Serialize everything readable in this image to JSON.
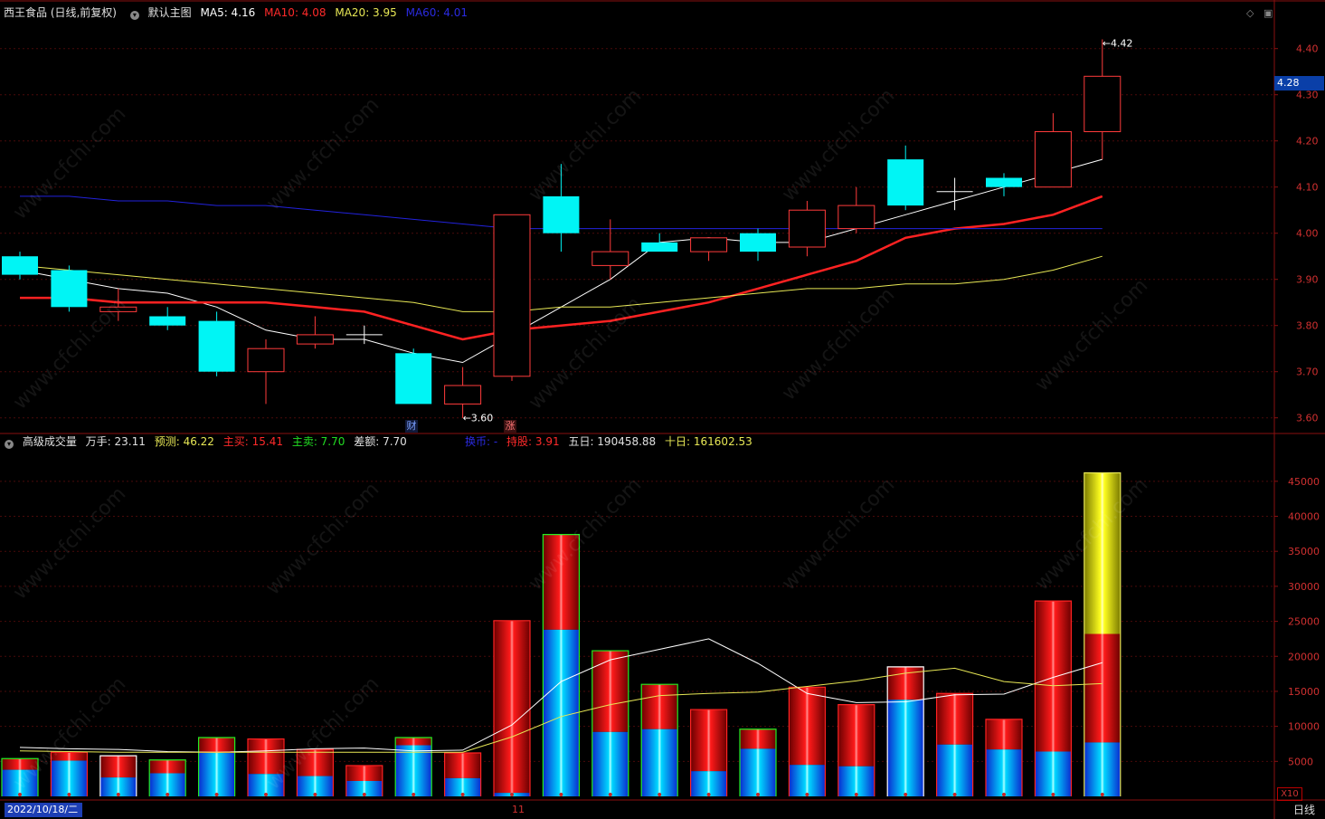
{
  "main_header": {
    "stock": "西王食品 (日线,前复权)",
    "template": "默认主图",
    "ma5": "MA5: 4.16",
    "ma10": "MA10: 4.08",
    "ma20": "MA20: 3.95",
    "ma60": "MA60: 4.01"
  },
  "vol_header": {
    "name": "高级成交量",
    "wanshou": "万手: 23.11",
    "forecast": "预测: 46.22",
    "buy": "主买: 15.41",
    "sell": "主卖: 7.70",
    "diff": "差额: 7.70",
    "huanshou": "换币: -",
    "chigu": "持股: 3.91",
    "five": "五日: 190458.88",
    "ten": "十日: 161602.53"
  },
  "current_price": "4.28",
  "date_cursor": "2022/10/18/二",
  "month_marker": "11",
  "period_tab": "日线",
  "scale_label": "X10",
  "signal_cai": "财",
  "signal_zhang": "涨",
  "watermark": "www.cfchi.com",
  "colors": {
    "up": "#ff3b3b",
    "down": "#00f5f5",
    "ma5": "#ffffff",
    "ma10": "#ff2222",
    "ma20": "#e8e855",
    "ma60": "#2222dd",
    "grid": "#4a0a0a",
    "axis_text": "#d03030"
  },
  "chart_data": [
    {
      "type": "candlestick",
      "name": "price",
      "yaxis_ticks": [
        3.6,
        3.7,
        3.8,
        3.9,
        4.0,
        4.1,
        4.2,
        4.3,
        4.4
      ],
      "ylim": [
        3.57,
        4.47
      ],
      "candles": [
        {
          "o": 3.95,
          "h": 3.96,
          "l": 3.9,
          "c": 3.91
        },
        {
          "o": 3.92,
          "h": 3.93,
          "l": 3.83,
          "c": 3.84
        },
        {
          "o": 3.83,
          "h": 3.88,
          "l": 3.81,
          "c": 3.84
        },
        {
          "o": 3.82,
          "h": 3.84,
          "l": 3.79,
          "c": 3.8
        },
        {
          "o": 3.81,
          "h": 3.83,
          "l": 3.69,
          "c": 3.7
        },
        {
          "o": 3.7,
          "h": 3.77,
          "l": 3.63,
          "c": 3.75
        },
        {
          "o": 3.76,
          "h": 3.82,
          "l": 3.75,
          "c": 3.78
        },
        {
          "o": 3.78,
          "h": 3.8,
          "l": 3.76,
          "c": 3.78
        },
        {
          "o": 3.74,
          "h": 3.75,
          "l": 3.63,
          "c": 3.63
        },
        {
          "o": 3.63,
          "h": 3.71,
          "l": 3.6,
          "c": 3.67
        },
        {
          "o": 3.69,
          "h": 4.04,
          "l": 3.68,
          "c": 4.04
        },
        {
          "o": 4.08,
          "h": 4.15,
          "l": 3.96,
          "c": 4.0
        },
        {
          "o": 3.93,
          "h": 4.03,
          "l": 3.9,
          "c": 3.96
        },
        {
          "o": 3.98,
          "h": 4.0,
          "l": 3.96,
          "c": 3.96
        },
        {
          "o": 3.96,
          "h": 3.99,
          "l": 3.94,
          "c": 3.99
        },
        {
          "o": 4.0,
          "h": 4.01,
          "l": 3.94,
          "c": 3.96
        },
        {
          "o": 3.97,
          "h": 4.07,
          "l": 3.95,
          "c": 4.05
        },
        {
          "o": 4.01,
          "h": 4.1,
          "l": 4.0,
          "c": 4.06
        },
        {
          "o": 4.16,
          "h": 4.19,
          "l": 4.05,
          "c": 4.06
        },
        {
          "o": 4.09,
          "h": 4.12,
          "l": 4.05,
          "c": 4.09
        },
        {
          "o": 4.12,
          "h": 4.13,
          "l": 4.08,
          "c": 4.1
        },
        {
          "o": 4.1,
          "h": 4.26,
          "l": 4.1,
          "c": 4.22
        },
        {
          "o": 4.22,
          "h": 4.42,
          "l": 4.16,
          "c": 4.34
        }
      ],
      "annotations": [
        {
          "label": "3.60",
          "index": 9
        },
        {
          "label": "4.42",
          "index": 22
        }
      ],
      "series": [
        {
          "name": "MA5",
          "values": [
            3.92,
            3.9,
            3.88,
            3.87,
            3.84,
            3.79,
            3.77,
            3.77,
            3.74,
            3.72,
            3.78,
            3.84,
            3.9,
            3.98,
            3.99,
            3.98,
            3.98,
            4.01,
            4.04,
            4.07,
            4.1,
            4.13,
            4.16
          ]
        },
        {
          "name": "MA10",
          "values": [
            3.86,
            3.86,
            3.85,
            3.85,
            3.85,
            3.85,
            3.84,
            3.83,
            3.8,
            3.77,
            3.79,
            3.8,
            3.81,
            3.83,
            3.85,
            3.88,
            3.91,
            3.94,
            3.99,
            4.01,
            4.02,
            4.04,
            4.08
          ]
        },
        {
          "name": "MA20",
          "values": [
            3.93,
            3.92,
            3.91,
            3.9,
            3.89,
            3.88,
            3.87,
            3.86,
            3.85,
            3.83,
            3.83,
            3.84,
            3.84,
            3.85,
            3.86,
            3.87,
            3.88,
            3.88,
            3.89,
            3.89,
            3.9,
            3.92,
            3.95
          ]
        },
        {
          "name": "MA60",
          "values": [
            4.08,
            4.08,
            4.07,
            4.07,
            4.06,
            4.06,
            4.05,
            4.04,
            4.03,
            4.02,
            4.01,
            4.01,
            4.01,
            4.01,
            4.01,
            4.01,
            4.01,
            4.01,
            4.01,
            4.01,
            4.01,
            4.01,
            4.01
          ]
        }
      ]
    },
    {
      "type": "bar",
      "name": "volume",
      "yaxis_ticks": [
        5000,
        10000,
        15000,
        20000,
        25000,
        30000,
        35000,
        40000,
        45000
      ],
      "ylim": [
        0,
        49500
      ],
      "bars": [
        {
          "total": 5400,
          "blue": 3800,
          "border": "green"
        },
        {
          "total": 6300,
          "blue": 5100,
          "border": "red"
        },
        {
          "total": 5800,
          "blue": 2700,
          "border": "white"
        },
        {
          "total": 5200,
          "blue": 3300,
          "border": "green"
        },
        {
          "total": 8400,
          "blue": 6200,
          "border": "green"
        },
        {
          "total": 8200,
          "blue": 3200,
          "border": "red"
        },
        {
          "total": 6700,
          "blue": 2900,
          "border": "red"
        },
        {
          "total": 4400,
          "blue": 2200,
          "border": "red"
        },
        {
          "total": 8400,
          "blue": 7300,
          "border": "green"
        },
        {
          "total": 6200,
          "blue": 2600,
          "border": "red"
        },
        {
          "total": 25100,
          "blue": 500,
          "border": "red"
        },
        {
          "total": 37400,
          "blue": 23800,
          "border": "green"
        },
        {
          "total": 20800,
          "blue": 9200,
          "border": "green"
        },
        {
          "total": 16000,
          "blue": 9600,
          "border": "green"
        },
        {
          "total": 12400,
          "blue": 3600,
          "border": "red"
        },
        {
          "total": 9600,
          "blue": 6800,
          "border": "green"
        },
        {
          "total": 15600,
          "blue": 4500,
          "border": "red"
        },
        {
          "total": 13100,
          "blue": 4300,
          "border": "red"
        },
        {
          "total": 18500,
          "blue": 13800,
          "border": "white"
        },
        {
          "total": 14700,
          "blue": 7400,
          "border": "red"
        },
        {
          "total": 11000,
          "blue": 6700,
          "border": "red"
        },
        {
          "total": 27900,
          "blue": 6400,
          "border": "red"
        },
        {
          "total": 23200,
          "blue": 7700,
          "border": "yellow",
          "forecast": 46200
        }
      ],
      "series": [
        {
          "name": "五日",
          "values": [
            7000,
            6800,
            6700,
            6400,
            6300,
            6500,
            6800,
            6900,
            6500,
            6600,
            10200,
            16400,
            19500,
            21000,
            22500,
            19000,
            14700,
            13400,
            13500,
            14500,
            14600,
            17000,
            19100
          ]
        },
        {
          "name": "十日",
          "values": [
            6500,
            6400,
            6300,
            6300,
            6300,
            6300,
            6300,
            6300,
            6300,
            6300,
            8500,
            11400,
            13100,
            14400,
            14700,
            14900,
            15700,
            16500,
            17600,
            18300,
            16400,
            15800,
            16100
          ]
        }
      ]
    }
  ]
}
